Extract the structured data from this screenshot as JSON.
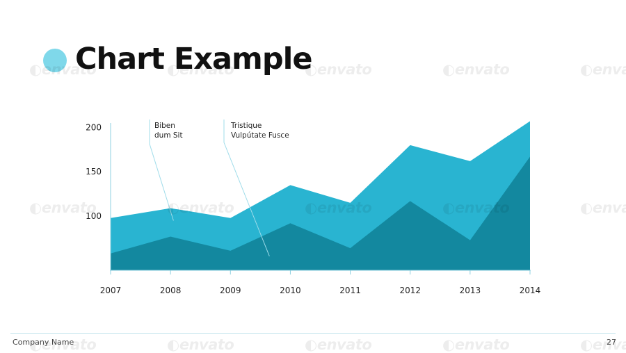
{
  "slide": {
    "title": "Chart Example",
    "company": "Company Name",
    "page_number": "27",
    "watermark": "envato"
  },
  "colors": {
    "accent_dot": "#7fd8ea",
    "series_back": "#29b4d1",
    "series_front": "#13889f",
    "axis": "#8fd0e0",
    "footer_line": "#bfe3ec"
  },
  "chart_data": {
    "type": "area",
    "x": [
      2007,
      2008,
      2009,
      2010,
      2011,
      2012,
      2013,
      2014
    ],
    "ylim": [
      39,
      205
    ],
    "yticks": [
      100,
      150,
      200
    ],
    "xlabel": "",
    "ylabel": "",
    "grid": false,
    "series": [
      {
        "values": [
          98,
          109,
          98,
          135,
          115,
          180,
          162,
          207
        ]
      },
      {
        "values": [
          58,
          77,
          61,
          92,
          64,
          117,
          73,
          167
        ]
      }
    ],
    "annotations": [
      {
        "lines": [
          "Biben",
          "dum Sit"
        ],
        "x": 2008.05,
        "y": 95
      },
      {
        "lines": [
          "Tristique",
          "Vulpútate Fusce"
        ],
        "x": 2009.65,
        "y": 55
      }
    ]
  }
}
